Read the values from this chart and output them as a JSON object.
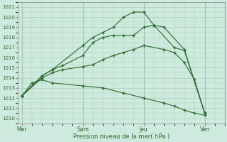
{
  "background_color": "#ceeade",
  "grid_color": "#aacfbb",
  "line_color": "#2d6a2d",
  "marker_color": "#2d6a2d",
  "ylabel_ticks": [
    1010,
    1011,
    1012,
    1013,
    1014,
    1015,
    1016,
    1017,
    1018,
    1019,
    1020,
    1021
  ],
  "ylim": [
    1009.5,
    1021.5
  ],
  "xlabel": "Pression niveau de la mer( hPa )",
  "day_labels": [
    "Mer",
    "Sam",
    "Jeu",
    "Ven"
  ],
  "day_positions": [
    0,
    3,
    6,
    9
  ],
  "xlim": [
    -0.2,
    10.0
  ],
  "series": [
    {
      "x": [
        0.0,
        1.0,
        1.5,
        3.0,
        3.5,
        4.0,
        4.5,
        5.0,
        5.5,
        6.0,
        6.5,
        7.0,
        8.0,
        9.0
      ],
      "y": [
        1012.2,
        1014.2,
        1014.8,
        1017.2,
        1018.0,
        1018.5,
        1019.0,
        1020.0,
        1020.5,
        1020.5,
        1019.2,
        1019.0,
        1016.8,
        1010.5
      ]
    },
    {
      "x": [
        0.0,
        1.0,
        1.5,
        2.0,
        3.0,
        3.5,
        4.0,
        4.5,
        5.0,
        5.5,
        6.0,
        6.5,
        7.5,
        8.0,
        9.0
      ],
      "y": [
        1012.2,
        1014.2,
        1014.8,
        1015.2,
        1016.2,
        1017.5,
        1018.0,
        1018.2,
        1018.2,
        1018.2,
        1019.0,
        1019.2,
        1017.0,
        1016.7,
        1010.5
      ]
    },
    {
      "x": [
        0.0,
        1.0,
        1.5,
        2.0,
        3.0,
        3.5,
        4.0,
        4.5,
        5.0,
        5.5,
        6.0,
        7.0,
        7.5,
        8.0,
        8.5,
        9.0
      ],
      "y": [
        1012.2,
        1014.0,
        1014.5,
        1014.8,
        1015.1,
        1015.3,
        1015.8,
        1016.2,
        1016.5,
        1016.8,
        1017.2,
        1016.8,
        1016.5,
        1015.5,
        1013.8,
        1010.5
      ]
    },
    {
      "x": [
        0.0,
        0.5,
        1.0,
        1.5,
        3.0,
        4.0,
        5.0,
        6.0,
        7.0,
        7.5,
        8.0,
        8.5,
        9.0
      ],
      "y": [
        1012.2,
        1013.5,
        1013.8,
        1013.5,
        1013.2,
        1013.0,
        1012.5,
        1012.0,
        1011.5,
        1011.2,
        1010.8,
        1010.5,
        1010.3
      ]
    }
  ]
}
